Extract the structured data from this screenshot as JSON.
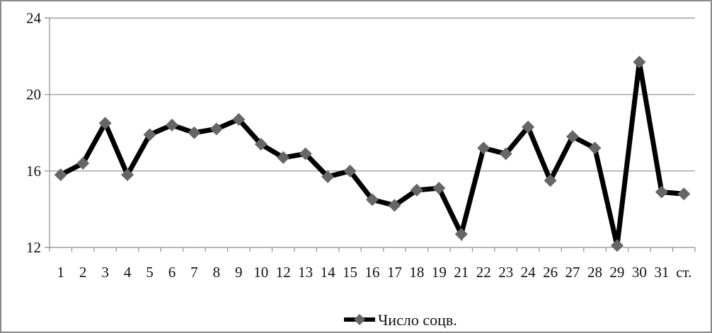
{
  "chart_data": {
    "type": "line",
    "title": "",
    "xlabel": "",
    "ylabel": "",
    "categories": [
      "1",
      "2",
      "3",
      "4",
      "5",
      "6",
      "7",
      "8",
      "9",
      "10",
      "12",
      "13",
      "14",
      "15",
      "16",
      "17",
      "18",
      "19",
      "21",
      "22",
      "23",
      "24",
      "26",
      "27",
      "28",
      "29",
      "30",
      "31",
      "ст."
    ],
    "series": [
      {
        "name": "Число соцв.",
        "values": [
          15.8,
          16.4,
          18.5,
          15.8,
          17.9,
          18.4,
          18.0,
          18.2,
          18.7,
          17.4,
          16.7,
          16.9,
          15.7,
          16.0,
          14.5,
          14.2,
          15.0,
          15.1,
          12.7,
          17.2,
          16.9,
          18.3,
          15.5,
          17.8,
          17.2,
          12.1,
          21.7,
          14.9,
          14.8
        ],
        "line_color": "#000000",
        "marker": "diamond",
        "marker_color": "#666666"
      }
    ],
    "ylim": [
      12,
      24
    ],
    "yticks": [
      12,
      16,
      20,
      24
    ],
    "grid": true,
    "legend_position": "bottom"
  }
}
